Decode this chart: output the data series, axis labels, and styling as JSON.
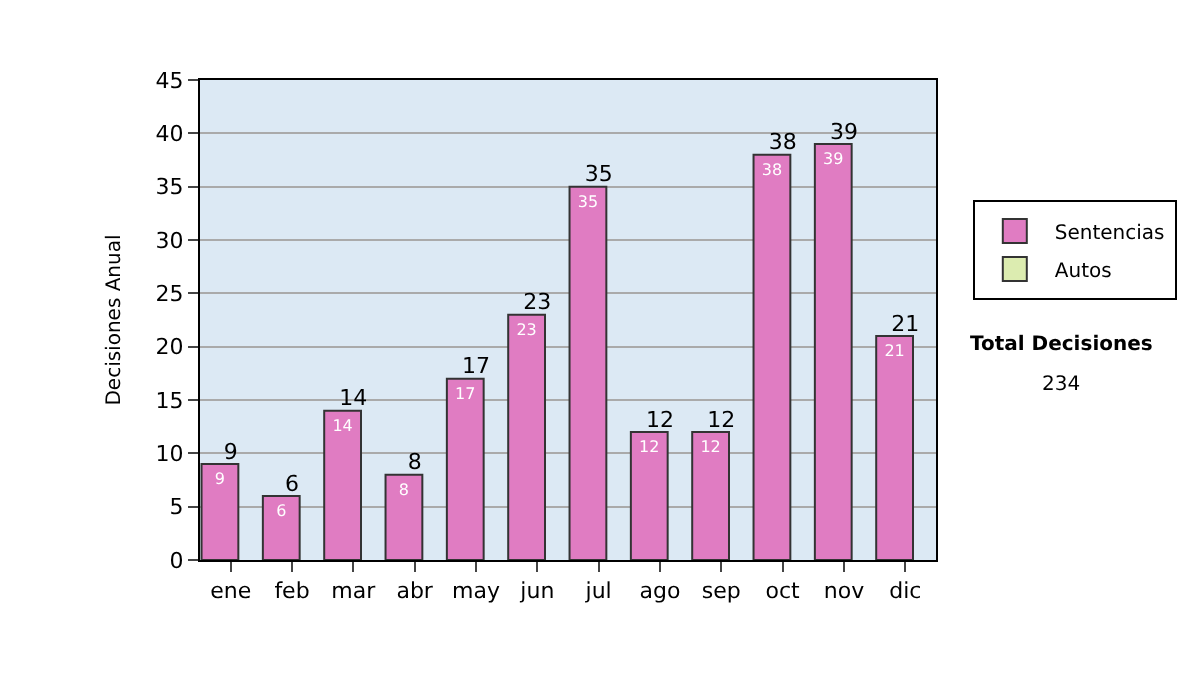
{
  "chart_data": {
    "type": "bar",
    "ylabel": "Decisiones Anual",
    "categories": [
      "ene",
      "feb",
      "mar",
      "abr",
      "may",
      "jun",
      "jul",
      "ago",
      "sep",
      "oct",
      "nov",
      "dic"
    ],
    "series": [
      {
        "name": "Sentencias",
        "color": "#e07cc2",
        "values": [
          9,
          6,
          14,
          8,
          17,
          23,
          35,
          12,
          12,
          38,
          39,
          21
        ],
        "value_labels": [
          "9",
          "6",
          "14",
          "8",
          "17",
          "23",
          "35",
          "12",
          "12",
          "38",
          "39",
          "21"
        ]
      },
      {
        "name": "Autos",
        "color": "#dcecb0",
        "values": [
          null,
          null,
          null,
          null,
          null,
          null,
          null,
          null,
          null,
          null,
          null,
          null
        ]
      }
    ],
    "ylim": [
      0,
      45
    ],
    "yticks": [
      0,
      5,
      10,
      15,
      20,
      25,
      30,
      35,
      40,
      45
    ],
    "grid": "y",
    "legend": "right",
    "totals": [
      "9",
      "6",
      "14",
      "8",
      "17",
      "23",
      "35",
      "12",
      "12",
      "38",
      "39",
      "21"
    ],
    "annotations": [
      "Total Decisiones",
      "234"
    ]
  }
}
